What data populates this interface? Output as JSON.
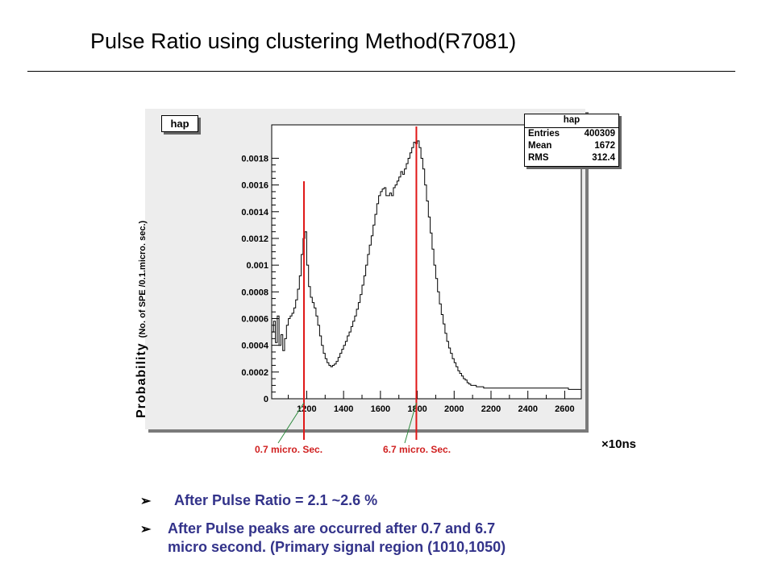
{
  "slide": {
    "title": "Pulse Ratio using clustering Method(R7081)",
    "unit_label": "×10ns",
    "callouts": [
      "0.7 micro. Sec.",
      "6.7 micro. Sec."
    ],
    "bullets": [
      "After Pulse Ratio = 2.1 ~2.6 %",
      "After Pulse peaks are occurred after  0.7 and 6.7",
      "micro second. (Primary signal region (1010,1050)"
    ],
    "bullet_marker": "➢"
  },
  "chart_data": {
    "type": "histogram",
    "name": "hap",
    "ylabel": "Probability",
    "ylabel_unit": "(No. of SPE /0.1.micro. sec.)",
    "xlim": [
      1010,
      2690
    ],
    "ylim": [
      0,
      0.00205
    ],
    "x_ticks": [
      1200,
      1400,
      1600,
      1800,
      2000,
      2200,
      2400,
      2600
    ],
    "y_ticks": [
      0,
      0.0002,
      0.0004,
      0.0006,
      0.0008,
      0.001,
      0.0012,
      0.0014,
      0.0016,
      0.0018
    ],
    "y_tick_labels": [
      "0",
      "0.0002",
      "0.0004",
      "0.0006",
      "0.0008",
      "0.001",
      "0.0012",
      "0.0014",
      "0.0016",
      "0.0018"
    ],
    "stats": {
      "title": "hap",
      "entries": "400309",
      "mean": "1672",
      "rms": "312.4"
    },
    "stats_labels": {
      "entries": "Entries",
      "mean": "Mean",
      "rms": "RMS"
    },
    "marker_lines": [
      1185,
      1795
    ],
    "profile": [
      [
        1010,
        0.0005
      ],
      [
        1020,
        0.00058
      ],
      [
        1030,
        0.00042
      ],
      [
        1040,
        0.00062
      ],
      [
        1050,
        0.0004
      ],
      [
        1060,
        0.00048
      ],
      [
        1070,
        0.00036
      ],
      [
        1080,
        0.00045
      ],
      [
        1090,
        0.00055
      ],
      [
        1100,
        0.0006
      ],
      [
        1110,
        0.00062
      ],
      [
        1120,
        0.00064
      ],
      [
        1130,
        0.00068
      ],
      [
        1140,
        0.00074
      ],
      [
        1150,
        0.00082
      ],
      [
        1160,
        0.00092
      ],
      [
        1170,
        0.00108
      ],
      [
        1180,
        0.0012
      ],
      [
        1190,
        0.00125
      ],
      [
        1200,
        0.001
      ],
      [
        1210,
        0.00084
      ],
      [
        1220,
        0.00076
      ],
      [
        1230,
        0.00072
      ],
      [
        1240,
        0.00068
      ],
      [
        1250,
        0.00062
      ],
      [
        1260,
        0.00055
      ],
      [
        1270,
        0.00047
      ],
      [
        1280,
        0.0004
      ],
      [
        1290,
        0.00034
      ],
      [
        1300,
        0.0003
      ],
      [
        1310,
        0.00027
      ],
      [
        1320,
        0.00025
      ],
      [
        1330,
        0.00024
      ],
      [
        1340,
        0.00025
      ],
      [
        1350,
        0.00026
      ],
      [
        1360,
        0.00028
      ],
      [
        1370,
        0.00031
      ],
      [
        1380,
        0.00034
      ],
      [
        1390,
        0.00037
      ],
      [
        1400,
        0.0004
      ],
      [
        1410,
        0.00043
      ],
      [
        1420,
        0.00047
      ],
      [
        1430,
        0.0005
      ],
      [
        1440,
        0.00054
      ],
      [
        1450,
        0.00058
      ],
      [
        1460,
        0.00062
      ],
      [
        1470,
        0.00067
      ],
      [
        1480,
        0.00072
      ],
      [
        1490,
        0.00078
      ],
      [
        1500,
        0.00085
      ],
      [
        1510,
        0.00092
      ],
      [
        1520,
        0.001
      ],
      [
        1530,
        0.00108
      ],
      [
        1540,
        0.00115
      ],
      [
        1550,
        0.00122
      ],
      [
        1560,
        0.0013
      ],
      [
        1570,
        0.00138
      ],
      [
        1580,
        0.00146
      ],
      [
        1590,
        0.00152
      ],
      [
        1600,
        0.00155
      ],
      [
        1610,
        0.00157
      ],
      [
        1620,
        0.00158
      ],
      [
        1630,
        0.00152
      ],
      [
        1640,
        0.00152
      ],
      [
        1650,
        0.00154
      ],
      [
        1660,
        0.00152
      ],
      [
        1670,
        0.00158
      ],
      [
        1680,
        0.0016
      ],
      [
        1690,
        0.00163
      ],
      [
        1700,
        0.00166
      ],
      [
        1710,
        0.0017
      ],
      [
        1720,
        0.00168
      ],
      [
        1730,
        0.00172
      ],
      [
        1740,
        0.00176
      ],
      [
        1750,
        0.0018
      ],
      [
        1760,
        0.00184
      ],
      [
        1770,
        0.00188
      ],
      [
        1780,
        0.00192
      ],
      [
        1790,
        0.00191
      ],
      [
        1800,
        0.00193
      ],
      [
        1810,
        0.00188
      ],
      [
        1820,
        0.0018
      ],
      [
        1830,
        0.00172
      ],
      [
        1840,
        0.0016
      ],
      [
        1850,
        0.00148
      ],
      [
        1860,
        0.00136
      ],
      [
        1870,
        0.00124
      ],
      [
        1880,
        0.00112
      ],
      [
        1890,
        0.001
      ],
      [
        1900,
        0.0009
      ],
      [
        1910,
        0.0008
      ],
      [
        1920,
        0.00071
      ],
      [
        1930,
        0.00063
      ],
      [
        1940,
        0.00056
      ],
      [
        1950,
        0.00049
      ],
      [
        1960,
        0.00043
      ],
      [
        1970,
        0.00038
      ],
      [
        1980,
        0.00034
      ],
      [
        1990,
        0.0003
      ],
      [
        2000,
        0.00027
      ],
      [
        2010,
        0.00024
      ],
      [
        2020,
        0.00021
      ],
      [
        2030,
        0.00019
      ],
      [
        2040,
        0.00017
      ],
      [
        2050,
        0.00015
      ],
      [
        2060,
        0.00014
      ],
      [
        2070,
        0.00012
      ],
      [
        2080,
        0.00011
      ],
      [
        2090,
        0.0001
      ],
      [
        2100,
        0.0001
      ],
      [
        2120,
        9e-05
      ],
      [
        2140,
        9e-05
      ],
      [
        2160,
        8e-05
      ],
      [
        2200,
        8e-05
      ],
      [
        2260,
        8e-05
      ],
      [
        2320,
        8e-05
      ],
      [
        2380,
        8e-05
      ],
      [
        2440,
        8e-05
      ],
      [
        2500,
        8e-05
      ],
      [
        2560,
        8e-05
      ],
      [
        2620,
        7e-05
      ],
      [
        2660,
        7e-05
      ],
      [
        2690,
        7e-05
      ]
    ]
  }
}
